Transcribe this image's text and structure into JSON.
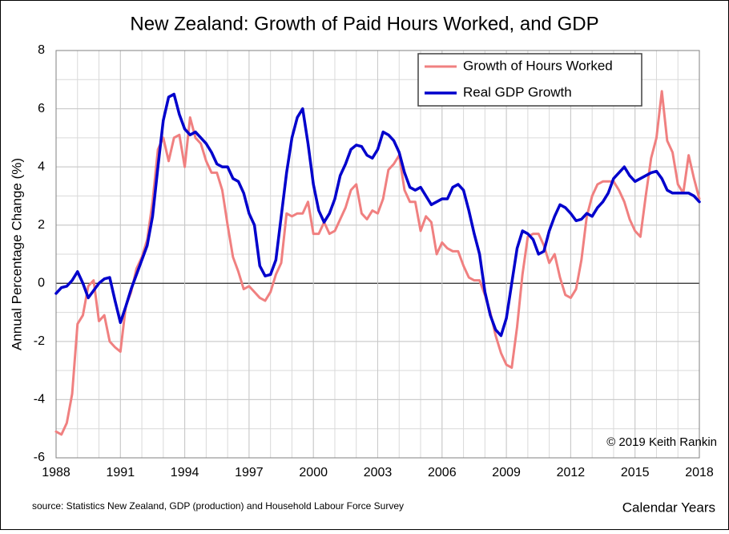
{
  "chart_data": {
    "type": "line",
    "title": "New Zealand: Growth of Paid Hours Worked, and GDP",
    "x_label": "Calendar Years",
    "y_label": "Annual Percentage Change (%)",
    "annotations": [
      "© 2019 Keith Rankin",
      "source: Statistics New Zealand, GDP (production) and Household Labour Force Survey"
    ],
    "xlim": [
      1988,
      2018
    ],
    "xticks": [
      1988,
      1991,
      1994,
      1997,
      2000,
      2003,
      2006,
      2009,
      2012,
      2015,
      2018
    ],
    "ylim": [
      -6,
      8
    ],
    "yticks": [
      -6,
      -4,
      -2,
      0,
      2,
      4,
      6,
      8
    ],
    "grid": true,
    "legend": "top-right",
    "x": [
      1988,
      1988.25,
      1988.5,
      1988.75,
      1989,
      1989.25,
      1989.5,
      1989.75,
      1990,
      1990.25,
      1990.5,
      1990.75,
      1991,
      1991.25,
      1991.5,
      1991.75,
      1992,
      1992.25,
      1992.5,
      1992.75,
      1993,
      1993.25,
      1993.5,
      1993.75,
      1994,
      1994.25,
      1994.5,
      1994.75,
      1995,
      1995.25,
      1995.5,
      1995.75,
      1996,
      1996.25,
      1996.5,
      1996.75,
      1997,
      1997.25,
      1997.5,
      1997.75,
      1998,
      1998.25,
      1998.5,
      1998.75,
      1999,
      1999.25,
      1999.5,
      1999.75,
      2000,
      2000.25,
      2000.5,
      2000.75,
      2001,
      2001.25,
      2001.5,
      2001.75,
      2002,
      2002.25,
      2002.5,
      2002.75,
      2003,
      2003.25,
      2003.5,
      2003.75,
      2004,
      2004.25,
      2004.5,
      2004.75,
      2005,
      2005.25,
      2005.5,
      2005.75,
      2006,
      2006.25,
      2006.5,
      2006.75,
      2007,
      2007.25,
      2007.5,
      2007.75,
      2008,
      2008.25,
      2008.5,
      2008.75,
      2009,
      2009.25,
      2009.5,
      2009.75,
      2010,
      2010.25,
      2010.5,
      2010.75,
      2011,
      2011.25,
      2011.5,
      2011.75,
      2012,
      2012.25,
      2012.5,
      2012.75,
      2013,
      2013.25,
      2013.5,
      2013.75,
      2014,
      2014.25,
      2014.5,
      2014.75,
      2015,
      2015.25,
      2015.5,
      2015.75,
      2016,
      2016.25,
      2016.5,
      2016.75,
      2017,
      2017.25,
      2017.5,
      2017.75,
      2018
    ],
    "series": [
      {
        "name": "Growth of Hours Worked",
        "color": "#f08080",
        "values": [
          -5.1,
          -5.2,
          -4.8,
          -3.8,
          -1.4,
          -1.1,
          -0.1,
          0.1,
          -1.3,
          -1.1,
          -2.0,
          -2.2,
          -2.35,
          -0.8,
          -0.3,
          0.5,
          0.9,
          1.5,
          2.8,
          4.6,
          5.0,
          4.2,
          5.0,
          5.1,
          4.0,
          5.7,
          5.0,
          4.8,
          4.2,
          3.8,
          3.8,
          3.2,
          2.0,
          0.9,
          0.4,
          -0.2,
          -0.1,
          -0.3,
          -0.5,
          -0.6,
          -0.3,
          0.3,
          0.7,
          2.4,
          2.3,
          2.4,
          2.4,
          2.8,
          1.7,
          1.7,
          2.1,
          1.7,
          1.8,
          2.2,
          2.6,
          3.2,
          3.4,
          2.4,
          2.2,
          2.5,
          2.4,
          2.9,
          3.9,
          4.1,
          4.4,
          3.2,
          2.8,
          2.8,
          1.8,
          2.3,
          2.1,
          1.0,
          1.4,
          1.2,
          1.1,
          1.1,
          0.6,
          0.2,
          0.1,
          0.1,
          -0.4,
          -1.0,
          -1.8,
          -2.4,
          -2.8,
          -2.9,
          -1.5,
          0.3,
          1.6,
          1.7,
          1.7,
          1.3,
          0.7,
          1.0,
          0.2,
          -0.4,
          -0.5,
          -0.2,
          0.8,
          2.3,
          3.0,
          3.4,
          3.5,
          3.5,
          3.5,
          3.2,
          2.8,
          2.2,
          1.8,
          1.6,
          3.0,
          4.3,
          5.0,
          6.6,
          4.9,
          4.5,
          3.4,
          3.1,
          4.4,
          3.6,
          2.9
        ]
      },
      {
        "name": "Real GDP Growth",
        "color": "#0000cc",
        "values": [
          -0.35,
          -0.15,
          -0.1,
          0.1,
          0.4,
          0.0,
          -0.5,
          -0.25,
          0.0,
          0.15,
          0.2,
          -0.6,
          -1.35,
          -0.8,
          -0.2,
          0.3,
          0.8,
          1.3,
          2.3,
          4.0,
          5.6,
          6.4,
          6.5,
          5.8,
          5.3,
          5.1,
          5.2,
          5.0,
          4.8,
          4.5,
          4.1,
          4.0,
          4.0,
          3.6,
          3.5,
          3.1,
          2.4,
          2.0,
          0.6,
          0.25,
          0.3,
          0.8,
          2.3,
          3.8,
          5.0,
          5.7,
          6.0,
          4.8,
          3.4,
          2.5,
          2.1,
          2.4,
          2.9,
          3.7,
          4.1,
          4.6,
          4.75,
          4.7,
          4.4,
          4.3,
          4.6,
          5.2,
          5.1,
          4.9,
          4.5,
          3.8,
          3.3,
          3.2,
          3.3,
          3.0,
          2.7,
          2.8,
          2.9,
          2.9,
          3.3,
          3.4,
          3.2,
          2.5,
          1.7,
          1.0,
          -0.3,
          -1.1,
          -1.6,
          -1.8,
          -1.2,
          0.0,
          1.2,
          1.8,
          1.7,
          1.5,
          1.0,
          1.1,
          1.8,
          2.3,
          2.7,
          2.6,
          2.4,
          2.15,
          2.2,
          2.4,
          2.3,
          2.6,
          2.8,
          3.1,
          3.6,
          3.8,
          4.0,
          3.7,
          3.5,
          3.6,
          3.7,
          3.8,
          3.85,
          3.6,
          3.2,
          3.1,
          3.1,
          3.1,
          3.1,
          3.0,
          2.8
        ]
      }
    ]
  }
}
